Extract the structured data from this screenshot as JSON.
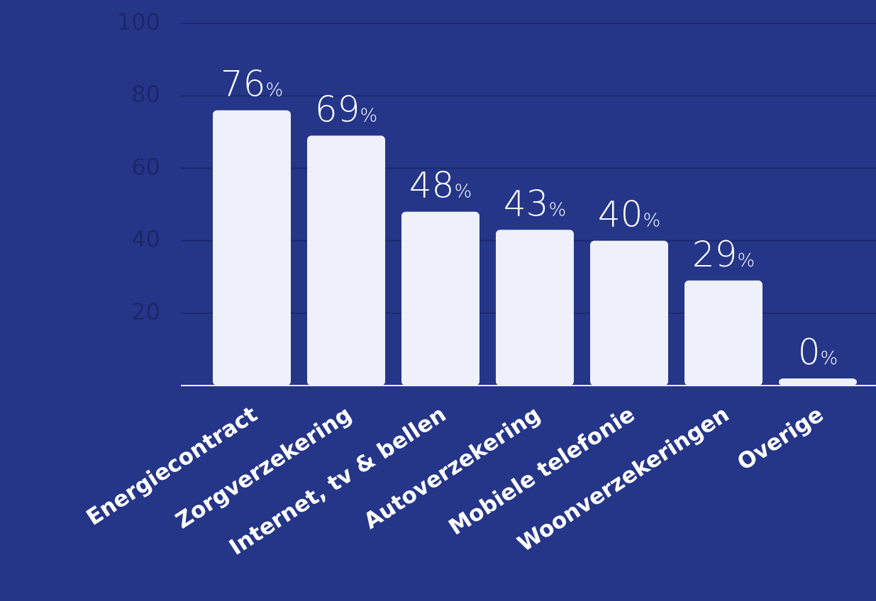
{
  "chart_data": {
    "type": "bar",
    "categories": [
      "Energiecontract",
      "Zorgverzekering",
      "Internet, tv & bellen",
      "Autoverzekering",
      "Mobiele telefonie",
      "Woonverzekeringen",
      "Overige"
    ],
    "values": [
      76,
      69,
      48,
      43,
      40,
      29,
      0
    ],
    "value_labels": [
      "76%",
      "69%",
      "48%",
      "43%",
      "40%",
      "29%",
      "0%"
    ],
    "color": "#eef1fb",
    "ylim": [
      0,
      100
    ],
    "yticks": [
      20,
      40,
      60,
      80,
      100
    ],
    "grid": true
  }
}
